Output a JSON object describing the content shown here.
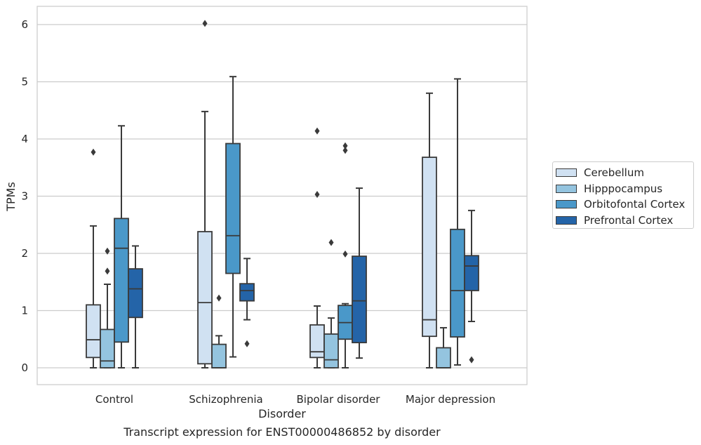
{
  "chart_data": {
    "type": "box",
    "xlabel": "Disorder",
    "ylabel": "TPMs",
    "caption": "Transcript expression for ENST00000486852 by disorder",
    "ylim": [
      -0.3,
      6.35
    ],
    "yticks": [
      0,
      1,
      2,
      3,
      4,
      5,
      6
    ],
    "grid": true,
    "legend_position": "right",
    "categories": [
      "Control",
      "Schizophrenia",
      "Bipolar disorder",
      "Major depression"
    ],
    "series": [
      {
        "name": "Cerebellum",
        "color": "#d0e1f2",
        "boxes": [
          {
            "whisker_low": 0.0,
            "q1": 0.18,
            "median": 0.49,
            "q3": 1.1,
            "whisker_high": 2.48,
            "outliers": [
              3.77
            ]
          },
          {
            "whisker_low": 0.0,
            "q1": 0.07,
            "median": 1.14,
            "q3": 2.38,
            "whisker_high": 4.48,
            "outliers": [
              6.02
            ]
          },
          {
            "whisker_low": 0.0,
            "q1": 0.18,
            "median": 0.28,
            "q3": 0.75,
            "whisker_high": 1.08,
            "outliers": [
              3.03,
              4.14
            ]
          },
          {
            "whisker_low": 0.0,
            "q1": 0.55,
            "median": 0.84,
            "q3": 3.68,
            "whisker_high": 4.8,
            "outliers": []
          }
        ]
      },
      {
        "name": "Hipppocampus",
        "color": "#94c4df",
        "boxes": [
          {
            "whisker_low": 0.0,
            "q1": 0.0,
            "median": 0.12,
            "q3": 0.67,
            "whisker_high": 1.46,
            "outliers": [
              1.69,
              2.04
            ]
          },
          {
            "whisker_low": 0.0,
            "q1": 0.0,
            "median": 0.0,
            "q3": 0.41,
            "whisker_high": 0.56,
            "outliers": [
              1.22
            ]
          },
          {
            "whisker_low": 0.0,
            "q1": 0.0,
            "median": 0.14,
            "q3": 0.59,
            "whisker_high": 0.87,
            "outliers": [
              2.19
            ]
          },
          {
            "whisker_low": 0.0,
            "q1": 0.0,
            "median": 0.0,
            "q3": 0.35,
            "whisker_high": 0.7,
            "outliers": []
          }
        ]
      },
      {
        "name": "Orbitofontal Cortex",
        "color": "#4a98c9",
        "boxes": [
          {
            "whisker_low": 0.0,
            "q1": 0.45,
            "median": 2.09,
            "q3": 2.61,
            "whisker_high": 4.23,
            "outliers": []
          },
          {
            "whisker_low": 0.19,
            "q1": 1.65,
            "median": 2.31,
            "q3": 3.92,
            "whisker_high": 5.09,
            "outliers": []
          },
          {
            "whisker_low": 0.0,
            "q1": 0.5,
            "median": 0.79,
            "q3": 1.09,
            "whisker_high": 1.12,
            "outliers": [
              1.99,
              3.8,
              3.88
            ]
          },
          {
            "whisker_low": 0.05,
            "q1": 0.54,
            "median": 1.35,
            "q3": 2.42,
            "whisker_high": 5.05,
            "outliers": []
          }
        ]
      },
      {
        "name": "Prefrontal Cortex",
        "color": "#2464a8",
        "boxes": [
          {
            "whisker_low": 0.0,
            "q1": 0.88,
            "median": 1.38,
            "q3": 1.73,
            "whisker_high": 2.13,
            "outliers": []
          },
          {
            "whisker_low": 0.84,
            "q1": 1.17,
            "median": 1.35,
            "q3": 1.47,
            "whisker_high": 1.91,
            "outliers": [
              0.42
            ]
          },
          {
            "whisker_low": 0.17,
            "q1": 0.44,
            "median": 1.17,
            "q3": 1.95,
            "whisker_high": 3.14,
            "outliers": []
          },
          {
            "whisker_low": 0.81,
            "q1": 1.35,
            "median": 1.78,
            "q3": 1.96,
            "whisker_high": 2.75,
            "outliers": [
              0.14
            ]
          }
        ]
      }
    ]
  }
}
